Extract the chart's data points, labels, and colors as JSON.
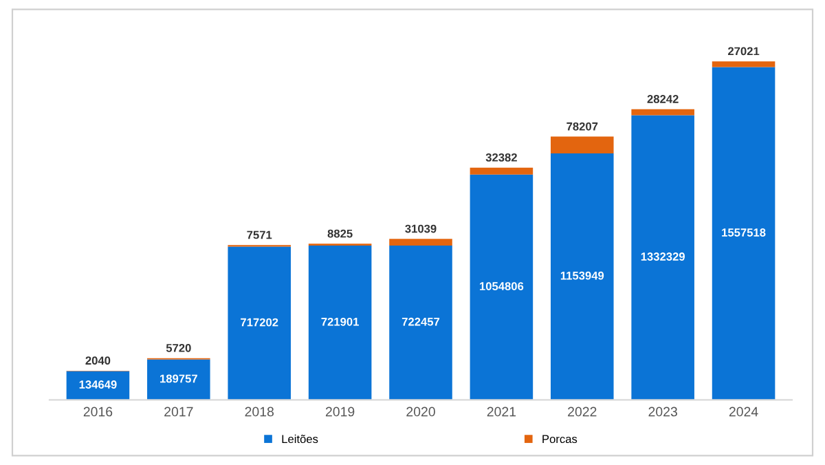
{
  "chart_data": {
    "type": "bar",
    "stacked": true,
    "categories": [
      "2016",
      "2017",
      "2018",
      "2019",
      "2020",
      "2021",
      "2022",
      "2023",
      "2024"
    ],
    "series": [
      {
        "name": "Leitões",
        "color": "#0b74d6",
        "values": [
          134649,
          189757,
          717202,
          721901,
          722457,
          1054806,
          1153949,
          1332329,
          1557518
        ]
      },
      {
        "name": "Porcas",
        "color": "#e3650f",
        "values": [
          2040,
          5720,
          7571,
          8825,
          31039,
          32382,
          78207,
          28242,
          27021
        ]
      }
    ],
    "data_labels": true,
    "legend": "bottom"
  }
}
